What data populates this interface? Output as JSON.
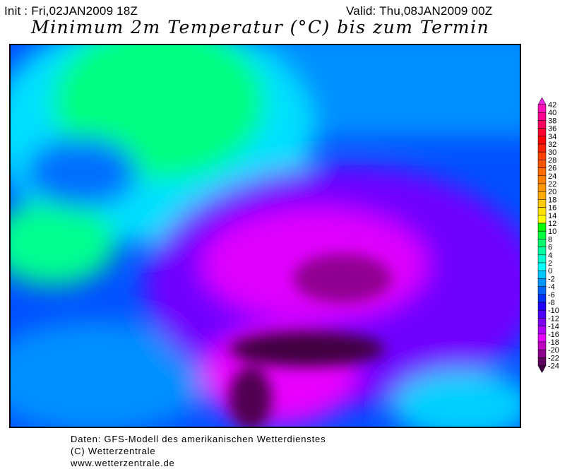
{
  "header": {
    "init": "Init : Fri,02JAN2009 18Z",
    "valid": "Valid: Thu,08JAN2009 00Z",
    "title": "Minimum 2m Temperatur (°C) bis zum Termin"
  },
  "colorbar": {
    "labels": [
      "42",
      "40",
      "38",
      "36",
      "34",
      "32",
      "30",
      "28",
      "26",
      "24",
      "22",
      "20",
      "18",
      "16",
      "14",
      "12",
      "10",
      "8",
      "6",
      "4",
      "2",
      "0",
      "-2",
      "-4",
      "-6",
      "-8",
      "-10",
      "-12",
      "-14",
      "-16",
      "-18",
      "-20",
      "-22",
      "-24"
    ],
    "colors": [
      "#ff10b8",
      "#ff0090",
      "#ff0060",
      "#ff0030",
      "#ff0000",
      "#ff2000",
      "#ff4000",
      "#ff5500",
      "#ff6a00",
      "#ff8000",
      "#ff9600",
      "#ffaa00",
      "#ffc800",
      "#ffe000",
      "#ffff00",
      "#00ff00",
      "#00ff40",
      "#00ff70",
      "#00ffa0",
      "#00ffd0",
      "#00ffff",
      "#00c8ff",
      "#0096ff",
      "#0064ff",
      "#0032ff",
      "#2000ff",
      "#5000ff",
      "#8000ff",
      "#b000ff",
      "#e800ff",
      "#c000c0",
      "#900090",
      "#600060"
    ],
    "top_arrow_color": "#f020e0",
    "bottom_arrow_color": "#400040"
  },
  "footer": {
    "line1": "Daten: GFS-Modell des amerikanischen Wetterdienstes",
    "line2": "(C) Wetterzentrale",
    "line3": "www.wetterzentrale.de"
  }
}
